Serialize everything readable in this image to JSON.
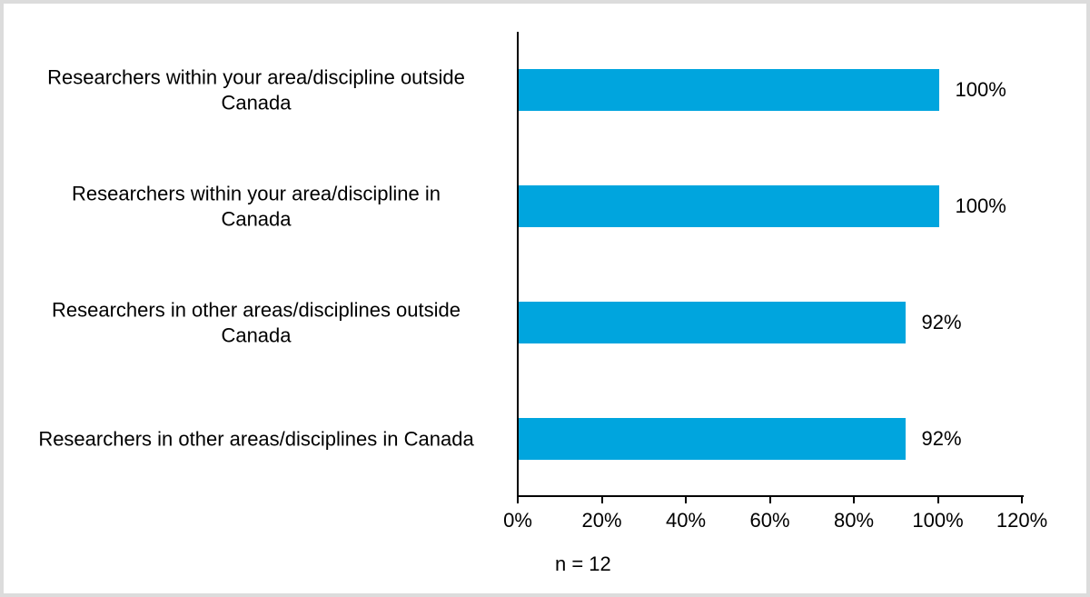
{
  "chart": {
    "note": "n = 12",
    "bar_color": "#00a5de",
    "axis_color": "#000000",
    "frame_color": "#dcdcdc"
  },
  "chart_data": {
    "type": "bar",
    "orientation": "horizontal",
    "title": "",
    "xlabel": "",
    "ylabel": "",
    "categories": [
      "Researchers within your area/discipline outside\nCanada",
      "Researchers within your area/discipline in\nCanada",
      "Researchers in other areas/disciplines outside\nCanada",
      "Researchers in other areas/disciplines in Canada"
    ],
    "values": [
      100,
      100,
      92,
      92
    ],
    "value_labels": [
      "100%",
      "100%",
      "92%",
      "92%"
    ],
    "x_ticks": [
      0,
      20,
      40,
      60,
      80,
      100,
      120
    ],
    "x_tick_labels": [
      "0%",
      "20%",
      "40%",
      "60%",
      "80%",
      "100%",
      "120%"
    ],
    "xlim": [
      0,
      120
    ],
    "grid": false,
    "legend_position": "none",
    "annotation": "n = 12"
  }
}
